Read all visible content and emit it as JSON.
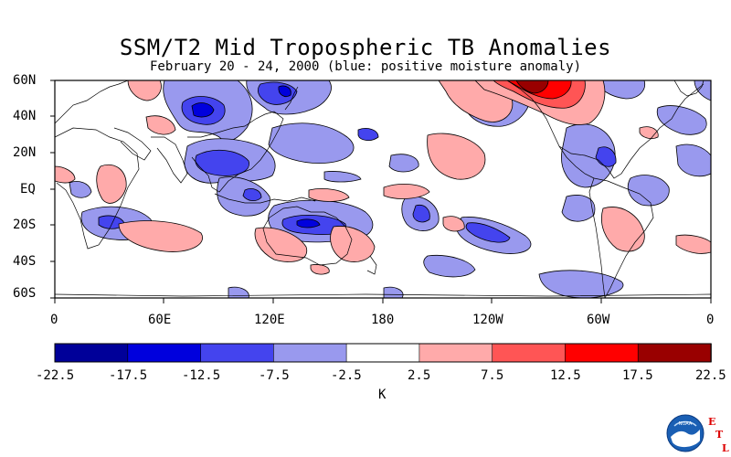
{
  "title": "SSM/T2 Mid Tropospheric TB Anomalies",
  "subtitle": "February 20 - 24, 2000 (blue: positive moisture anomaly)",
  "map": {
    "lat_ticks": [
      "60N",
      "40N",
      "20N",
      "EQ",
      "20S",
      "40S",
      "60S"
    ],
    "lon_ticks": [
      "0",
      "60E",
      "120E",
      "180",
      "120W",
      "60W",
      "0"
    ]
  },
  "colorbar": {
    "labels": [
      "-22.5",
      "-17.5",
      "-12.5",
      "-7.5",
      "-2.5",
      "2.5",
      "7.5",
      "12.5",
      "17.5",
      "22.5"
    ],
    "colors": [
      "#000099",
      "#0000dd",
      "#4444ee",
      "#9999ee",
      "#ffffff",
      "#ffaaaa",
      "#ff5555",
      "#ff0000",
      "#990000"
    ],
    "unit": "K"
  },
  "logo": {
    "agency": "NOAA",
    "lab_letters": [
      "E",
      "T",
      "L"
    ],
    "lab_color": "#dd0000"
  }
}
